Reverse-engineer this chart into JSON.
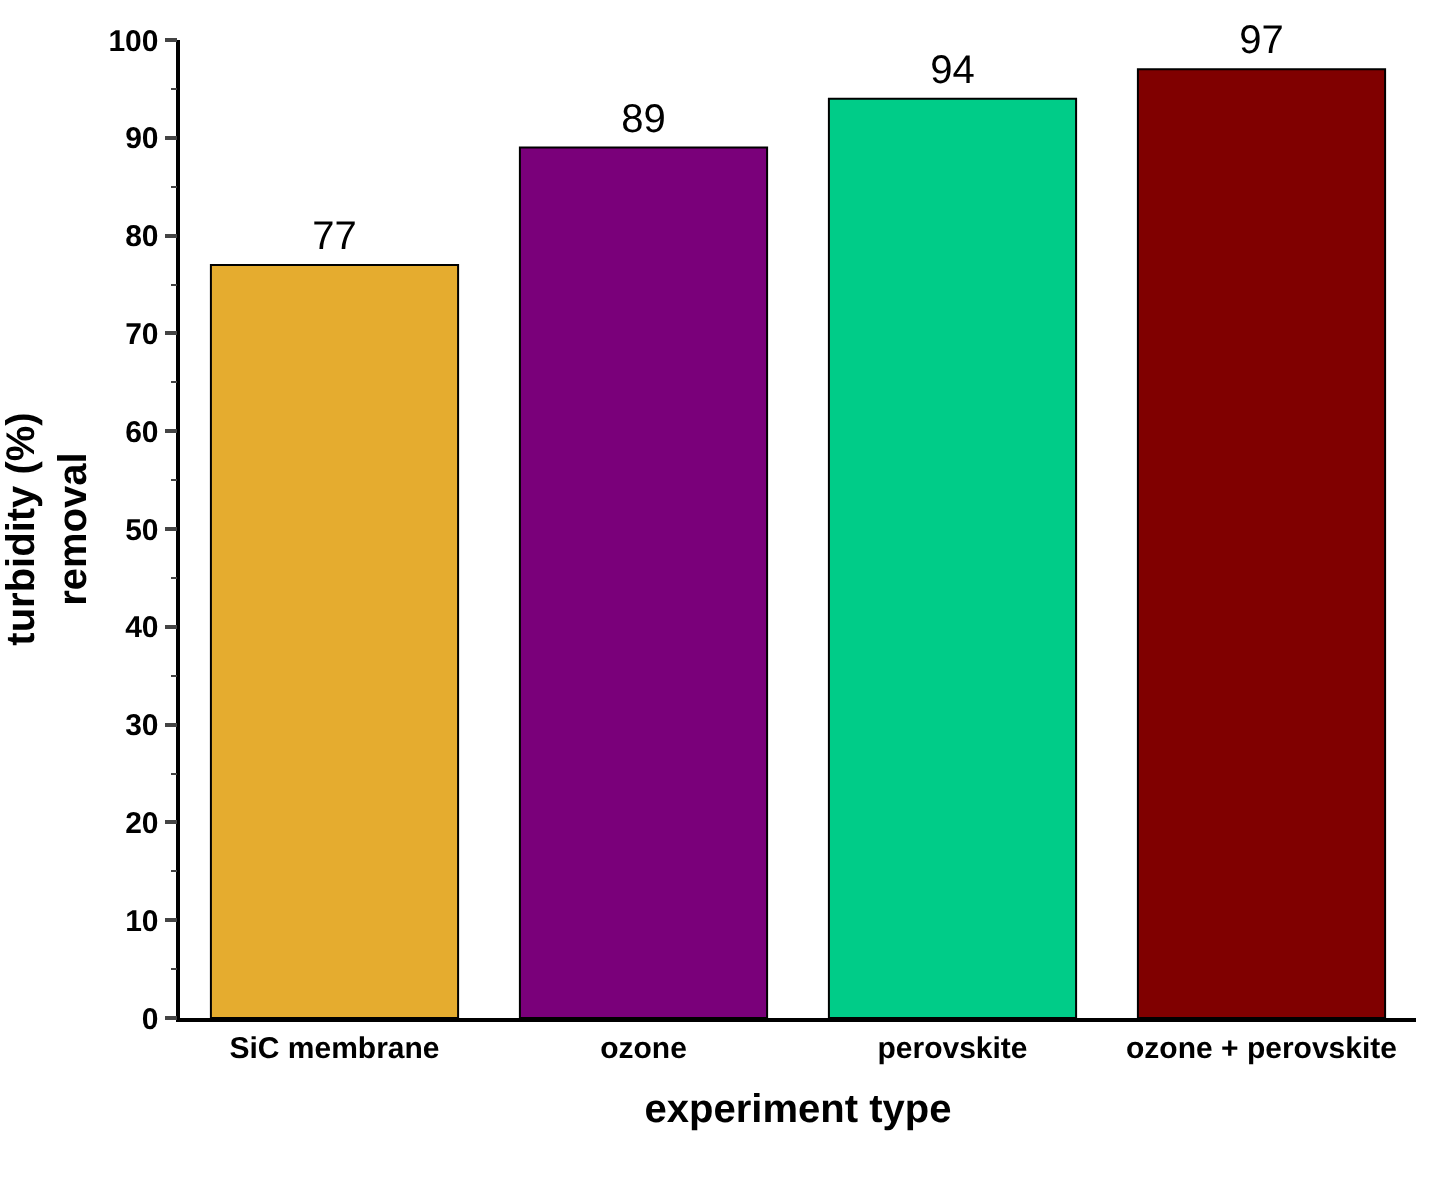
{
  "chart_data": {
    "type": "bar",
    "xlabel": "experiment type",
    "ylabel": "turbidity (%)\nremoval",
    "categories": [
      "SiC membrane",
      "ozone",
      "perovskite",
      "ozone + perovskite"
    ],
    "values": [
      77,
      89,
      94,
      97
    ],
    "colors": [
      "#e5ac2f",
      "#7a007a",
      "#00cc88",
      "#800000"
    ],
    "ylim": [
      0,
      100
    ],
    "yticks": [
      0,
      10,
      20,
      30,
      40,
      50,
      60,
      70,
      80,
      90,
      100
    ],
    "data_labels": true,
    "grid": false
  }
}
